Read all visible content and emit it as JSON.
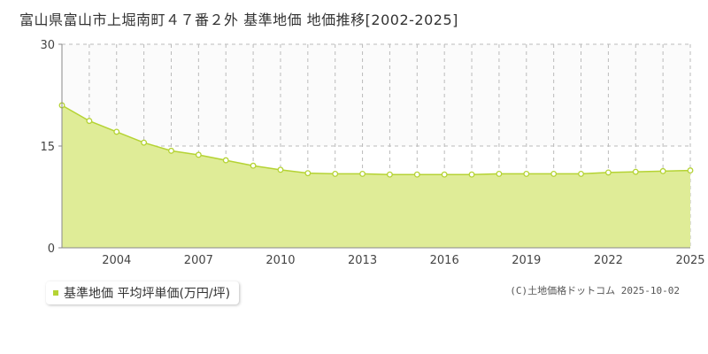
{
  "title": "富山県富山市上堀南町４７番２外 基準地価 地価推移[2002-2025]",
  "legend": {
    "label": "基準地価 平均坪単価(万円/坪)"
  },
  "copyright": "(C)土地価格ドットコム 2025-10-02",
  "colors": {
    "fill": "#dfec97",
    "line": "#b5d334",
    "marker": "#b5d334",
    "grid": "#bbbbbb",
    "upper_band": "#fbfbfb"
  },
  "chart_data": {
    "type": "area",
    "title": "富山県富山市上堀南町４７番２外 基準地価 地価推移[2002-2025]",
    "xlabel": "",
    "ylabel": "",
    "ylim": [
      0,
      30
    ],
    "yticks": [
      "0",
      "15",
      "30"
    ],
    "xticks": [
      "2004",
      "2007",
      "2010",
      "2013",
      "2016",
      "2019",
      "2022",
      "2025"
    ],
    "grid": true,
    "legend_position": "bottom-left",
    "series": [
      {
        "name": "基準地価 平均坪単価(万円/坪)",
        "x": [
          2002,
          2003,
          2004,
          2005,
          2006,
          2007,
          2008,
          2009,
          2010,
          2011,
          2012,
          2013,
          2014,
          2015,
          2016,
          2017,
          2018,
          2019,
          2020,
          2021,
          2022,
          2023,
          2024,
          2025
        ],
        "values": [
          21.0,
          18.7,
          17.1,
          15.5,
          14.3,
          13.7,
          12.9,
          12.1,
          11.5,
          11.0,
          10.9,
          10.9,
          10.8,
          10.8,
          10.8,
          10.8,
          10.9,
          10.9,
          10.9,
          10.9,
          11.1,
          11.2,
          11.3,
          11.4
        ]
      }
    ]
  }
}
